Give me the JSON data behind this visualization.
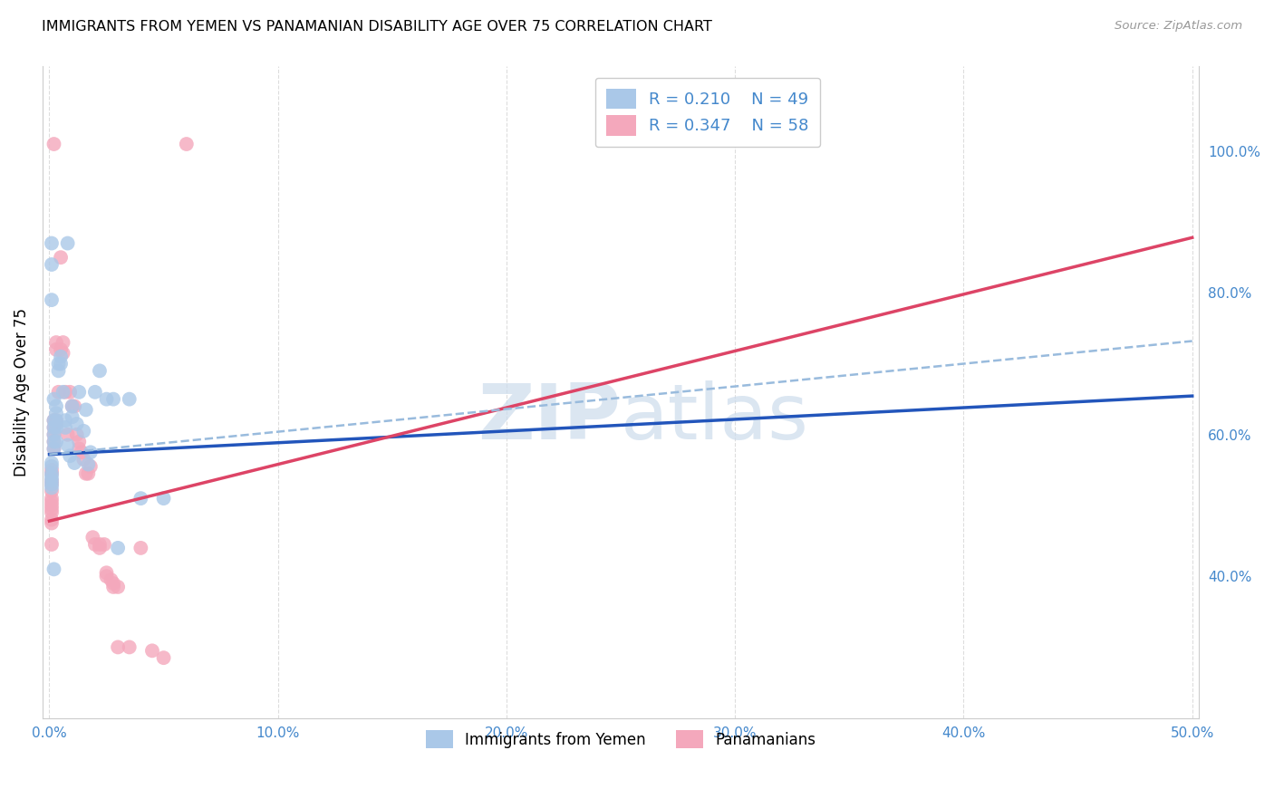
{
  "title": "IMMIGRANTS FROM YEMEN VS PANAMANIAN DISABILITY AGE OVER 75 CORRELATION CHART",
  "source": "Source: ZipAtlas.com",
  "ylabel": "Disability Age Over 75",
  "legend_blue_r": "R = 0.210",
  "legend_blue_n": "N = 49",
  "legend_pink_r": "R = 0.347",
  "legend_pink_n": "N = 58",
  "legend_label_blue": "Immigrants from Yemen",
  "legend_label_pink": "Panamanians",
  "blue_color": "#aac8e8",
  "pink_color": "#f4a8bc",
  "blue_line_color": "#2255bb",
  "pink_line_color": "#dd4466",
  "dashed_line_color": "#99bbdd",
  "grid_color": "#dddddd",
  "text_blue_color": "#4488cc",
  "watermark_color": "#ccdcec",
  "blue_scatter_x": [
    0.001,
    0.001,
    0.001,
    0.001,
    0.001,
    0.001,
    0.001,
    0.002,
    0.002,
    0.002,
    0.002,
    0.002,
    0.003,
    0.003,
    0.003,
    0.003,
    0.004,
    0.004,
    0.005,
    0.005,
    0.006,
    0.007,
    0.007,
    0.008,
    0.009,
    0.01,
    0.01,
    0.011,
    0.012,
    0.013,
    0.015,
    0.016,
    0.017,
    0.018,
    0.02,
    0.022,
    0.025,
    0.028,
    0.03,
    0.035,
    0.04,
    0.002,
    0.001,
    0.008,
    0.05,
    0.002,
    0.003,
    0.001,
    0.001
  ],
  "blue_scatter_y": [
    0.56,
    0.555,
    0.545,
    0.54,
    0.535,
    0.53,
    0.525,
    0.62,
    0.61,
    0.6,
    0.59,
    0.58,
    0.64,
    0.63,
    0.62,
    0.61,
    0.7,
    0.69,
    0.71,
    0.7,
    0.66,
    0.62,
    0.61,
    0.585,
    0.57,
    0.64,
    0.625,
    0.56,
    0.615,
    0.66,
    0.605,
    0.635,
    0.558,
    0.575,
    0.66,
    0.69,
    0.65,
    0.65,
    0.44,
    0.65,
    0.51,
    0.41,
    0.87,
    0.87,
    0.51,
    0.65,
    0.59,
    0.84,
    0.79
  ],
  "pink_scatter_x": [
    0.001,
    0.001,
    0.001,
    0.001,
    0.001,
    0.001,
    0.001,
    0.001,
    0.001,
    0.001,
    0.001,
    0.001,
    0.002,
    0.002,
    0.002,
    0.002,
    0.002,
    0.003,
    0.003,
    0.003,
    0.003,
    0.004,
    0.005,
    0.006,
    0.006,
    0.007,
    0.008,
    0.009,
    0.01,
    0.011,
    0.012,
    0.013,
    0.013,
    0.014,
    0.015,
    0.016,
    0.017,
    0.018,
    0.019,
    0.02,
    0.022,
    0.022,
    0.024,
    0.025,
    0.025,
    0.027,
    0.028,
    0.028,
    0.03,
    0.03,
    0.035,
    0.04,
    0.045,
    0.05,
    0.002,
    0.005,
    0.06,
    0.001
  ],
  "pink_scatter_y": [
    0.55,
    0.545,
    0.535,
    0.53,
    0.52,
    0.51,
    0.505,
    0.5,
    0.495,
    0.49,
    0.48,
    0.475,
    0.62,
    0.61,
    0.6,
    0.59,
    0.58,
    0.73,
    0.72,
    0.62,
    0.615,
    0.66,
    0.72,
    0.73,
    0.715,
    0.66,
    0.6,
    0.66,
    0.64,
    0.64,
    0.6,
    0.59,
    0.58,
    0.575,
    0.565,
    0.545,
    0.545,
    0.555,
    0.455,
    0.445,
    0.445,
    0.44,
    0.445,
    0.405,
    0.4,
    0.395,
    0.39,
    0.385,
    0.385,
    0.3,
    0.3,
    0.44,
    0.295,
    0.285,
    1.01,
    0.85,
    1.01,
    0.445
  ],
  "xlim": [
    -0.003,
    0.503
  ],
  "ylim": [
    0.2,
    1.12
  ],
  "x_ticks": [
    0.0,
    0.1,
    0.2,
    0.3,
    0.4,
    0.5
  ],
  "x_tick_labels": [
    "0.0%",
    "10.0%",
    "20.0%",
    "30.0%",
    "40.0%",
    "50.0%"
  ],
  "y_ticks_right": [
    0.4,
    0.6,
    0.8,
    1.0
  ],
  "y_tick_labels_right": [
    "40.0%",
    "60.0%",
    "80.0%",
    "100.0%"
  ],
  "blue_reg_slope": 0.165,
  "blue_reg_intercept": 0.572,
  "pink_reg_slope": 0.8,
  "pink_reg_intercept": 0.478,
  "dashed_slope": 0.32,
  "dashed_intercept": 0.572
}
